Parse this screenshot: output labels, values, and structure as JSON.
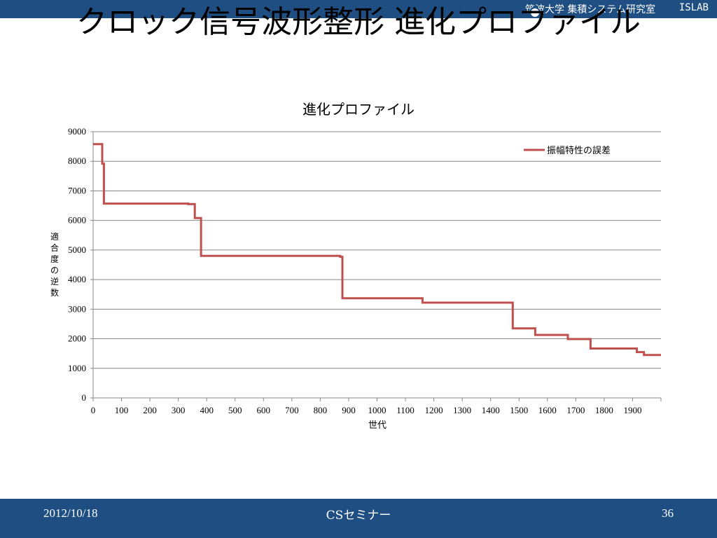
{
  "header": {
    "lab_name": "筑波大学 集積システム研究室",
    "lab_short": "ISLAB"
  },
  "slide": {
    "title": "クロック信号波形整形 進化プロファイル"
  },
  "chart_data": {
    "type": "line",
    "title": "進化プロファイル",
    "xlabel": "世代",
    "ylabel": "適合度の逆数",
    "xlim": [
      0,
      2000
    ],
    "ylim": [
      0,
      9000
    ],
    "x_ticks": [
      0,
      100,
      200,
      300,
      400,
      500,
      600,
      700,
      800,
      900,
      1000,
      1100,
      1200,
      1300,
      1400,
      1500,
      1600,
      1700,
      1800,
      1900
    ],
    "y_ticks": [
      0,
      1000,
      2000,
      3000,
      4000,
      5000,
      6000,
      7000,
      8000,
      9000
    ],
    "grid": true,
    "legend_position": "top-right",
    "colors": {
      "series": "#c0504d",
      "grid": "#888888",
      "axis": "#888888"
    },
    "series": [
      {
        "name": "振幅特性の誤差",
        "step_x": [
          0,
          32,
          32,
          38,
          38,
          335,
          335,
          358,
          358,
          380,
          380,
          870,
          870,
          878,
          878,
          1160,
          1160,
          1478,
          1478,
          1557,
          1557,
          1672,
          1672,
          1752,
          1752,
          1915,
          1915,
          1940,
          1940,
          2000
        ],
        "step_y": [
          8580,
          8580,
          7920,
          7920,
          6570,
          6570,
          6550,
          6550,
          6080,
          6080,
          4800,
          4800,
          4770,
          4770,
          3370,
          3370,
          3220,
          3220,
          2350,
          2350,
          2130,
          2130,
          1990,
          1990,
          1670,
          1670,
          1550,
          1550,
          1450,
          1450
        ]
      }
    ]
  },
  "footer": {
    "date": "2012/10/18",
    "center": "CSセミナー",
    "page": "36"
  }
}
